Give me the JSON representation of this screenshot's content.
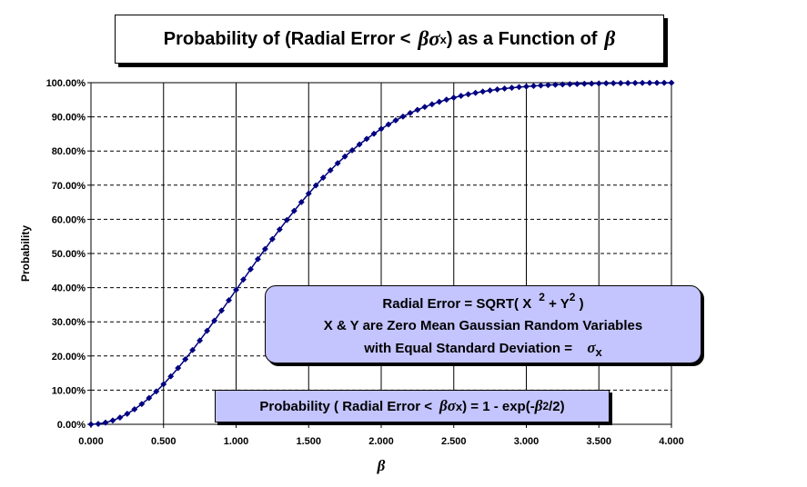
{
  "title": {
    "prefix": "Probability of (Radial Error <",
    "greek": "βσ",
    "sub": "x",
    "middle": ") as a Function of",
    "greek2": "β"
  },
  "formula_box": {
    "line1_prefix": "Radial Error = SQRT( X",
    "line1_sup1": "2",
    "line1_mid": "+ Y",
    "line1_sup2": "2",
    "line1_suffix": ")",
    "line2": "X & Y are Zero Mean Gaussian Random Variables",
    "line3_prefix": "with Equal Standard Deviation =",
    "line3_greek": "σ",
    "line3_sub": "x"
  },
  "equation_box": {
    "prefix": "Probability ( Radial Error <",
    "greek": "βσ",
    "sub": "x",
    "middle": ") = 1 - exp(-",
    "greek2": "β",
    "sup": "2",
    "suffix": "/2)"
  },
  "chart_data": {
    "type": "scatter",
    "title": "Probability of (Radial Error < βσx) as a Function of β",
    "xlabel": "β",
    "ylabel": "Probability",
    "xlim": [
      0,
      4
    ],
    "ylim": [
      0,
      1
    ],
    "x_ticks": [
      "0.000",
      "0.500",
      "1.000",
      "1.500",
      "2.000",
      "2.500",
      "3.000",
      "3.500",
      "4.000"
    ],
    "y_ticks": [
      "0.00%",
      "10.00%",
      "20.00%",
      "30.00%",
      "40.00%",
      "50.00%",
      "60.00%",
      "70.00%",
      "80.00%",
      "90.00%",
      "100.00%"
    ],
    "grid": "vertical solid at x ticks, horizontal dashed at y ticks",
    "series": [
      {
        "color": "#000080",
        "marker": "diamond",
        "line": true,
        "x": [
          0.0,
          0.05,
          0.1,
          0.15,
          0.2,
          0.25,
          0.3,
          0.35,
          0.4,
          0.45,
          0.5,
          0.55,
          0.6,
          0.65,
          0.7,
          0.75,
          0.8,
          0.85,
          0.9,
          0.95,
          1.0,
          1.05,
          1.1,
          1.15,
          1.2,
          1.25,
          1.3,
          1.35,
          1.4,
          1.45,
          1.5,
          1.55,
          1.6,
          1.65,
          1.7,
          1.75,
          1.8,
          1.85,
          1.9,
          1.95,
          2.0,
          2.05,
          2.1,
          2.15,
          2.2,
          2.25,
          2.3,
          2.35,
          2.4,
          2.45,
          2.5,
          2.55,
          2.6,
          2.65,
          2.7,
          2.75,
          2.8,
          2.85,
          2.9,
          2.95,
          3.0,
          3.05,
          3.1,
          3.15,
          3.2,
          3.25,
          3.3,
          3.35,
          3.4,
          3.45,
          3.5,
          3.55,
          3.6,
          3.65,
          3.7,
          3.75,
          3.8,
          3.85,
          3.9,
          3.95,
          4.0
        ],
        "y": [
          0.0,
          0.0012,
          0.005,
          0.0112,
          0.0198,
          0.0308,
          0.044,
          0.0594,
          0.0769,
          0.0963,
          0.1175,
          0.1404,
          0.1647,
          0.1904,
          0.2173,
          0.2452,
          0.2739,
          0.3032,
          0.333,
          0.3631,
          0.3935,
          0.4238,
          0.4539,
          0.4837,
          0.5132,
          0.5422,
          0.5704,
          0.598,
          0.6247,
          0.6505,
          0.6753,
          0.6992,
          0.722,
          0.7437,
          0.7643,
          0.7839,
          0.8021,
          0.8193,
          0.8355,
          0.8506,
          0.8647,
          0.8777,
          0.8897,
          0.9008,
          0.9111,
          0.9204,
          0.929,
          0.9368,
          0.9439,
          0.9503,
          0.9561,
          0.9614,
          0.966,
          0.9702,
          0.9739,
          0.9772,
          0.9802,
          0.9828,
          0.9851,
          0.9871,
          0.9889,
          0.9905,
          0.9918,
          0.993,
          0.994,
          0.9949,
          0.9957,
          0.9963,
          0.9969,
          0.9974,
          0.9978,
          0.9982,
          0.9985,
          0.9987,
          0.9989,
          0.9991,
          0.9993,
          0.9994,
          0.9995,
          0.9996,
          0.9997
        ]
      }
    ]
  }
}
